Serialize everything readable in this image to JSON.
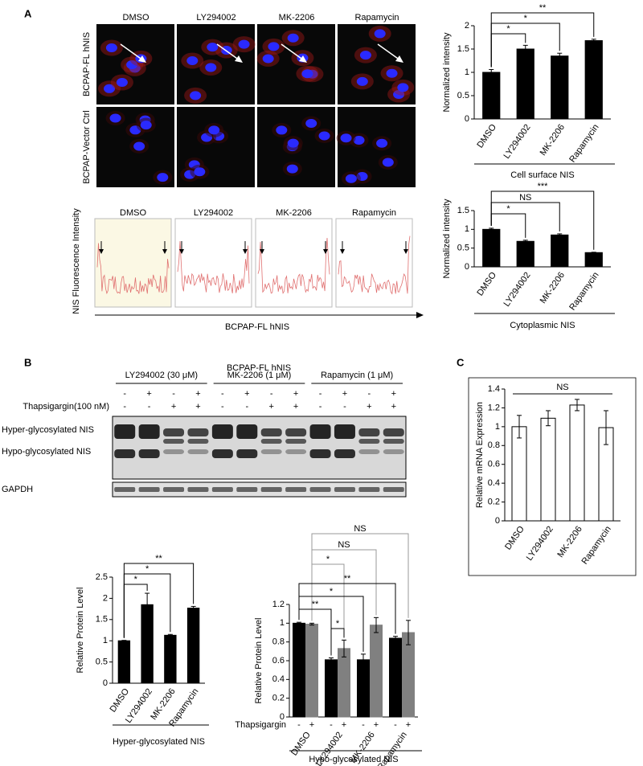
{
  "panel_labels": [
    "A",
    "B",
    "C"
  ],
  "micrographs": {
    "columns": [
      "DMSO",
      "LY294002",
      "MK-2206",
      "Rapamycin"
    ],
    "rows": [
      "BCPAP-FL hNIS",
      "BCPAP-Vector Ctrl"
    ]
  },
  "profiles": {
    "titles": [
      "DMSO",
      "LY294002",
      "MK-2206",
      "Rapamycin"
    ],
    "ylabel": "NIS Fluorescence Intensity",
    "xlabel": "BCPAP-FL hNIS"
  },
  "blot": {
    "title": "BCPAP-FL hNIS",
    "groups": [
      "LY294002 (30 μM)",
      "MK-2206 (1 μM)",
      "Rapamycin (1 μM)"
    ],
    "inhibitor_row": [
      "-",
      "+",
      "-",
      "+",
      "-",
      "+",
      "-",
      "+",
      "-",
      "+",
      "-",
      "+"
    ],
    "thapsigargin_label": "Thapsigargin(100 nM)",
    "thapsigargin_row": [
      "-",
      "-",
      "+",
      "+",
      "-",
      "-",
      "+",
      "+",
      "-",
      "-",
      "+",
      "+"
    ],
    "bands": [
      "Hyper-glycosylated NIS",
      "Hypo-glycosylated NIS",
      "GAPDH"
    ]
  },
  "chart_data": [
    {
      "type": "bar",
      "ylabel": "Normalized intensity",
      "xlabel": "Cell surface NIS",
      "categories": [
        "DMSO",
        "LY294002",
        "MK-2206",
        "Rapamycin"
      ],
      "values": [
        1,
        1.5,
        1.35,
        1.68
      ],
      "errors": [
        0.06,
        0.08,
        0.06,
        0.03
      ],
      "color": "#000000",
      "ylim": [
        0,
        2
      ],
      "yticks": [
        0,
        0.5,
        1,
        1.5,
        2
      ],
      "annotations": [
        "*",
        "*",
        "**"
      ]
    },
    {
      "type": "bar",
      "ylabel": "Normalized intensity",
      "xlabel": "Cytoplasmic NIS",
      "categories": [
        "DMSO",
        "LY294002",
        "MK-2206",
        "Rapamycin"
      ],
      "values": [
        1,
        0.68,
        0.85,
        0.38
      ],
      "errors": [
        0.03,
        0.03,
        0.03,
        0.01
      ],
      "color": "#000000",
      "ylim": [
        0,
        1.5
      ],
      "yticks": [
        0,
        0.5,
        1,
        1.5
      ],
      "annotations": [
        "*",
        "NS",
        "***"
      ]
    },
    {
      "type": "bar",
      "ylabel": "Relative mRNA Expression",
      "categories": [
        "DMSO",
        "LY294002",
        "MK-2206",
        "Rapamycin"
      ],
      "values": [
        1,
        1.09,
        1.23,
        0.99
      ],
      "errors": [
        0.12,
        0.08,
        0.06,
        0.18
      ],
      "color": "#ffffff",
      "edgecolor": "#000000",
      "ylim": [
        0,
        1.4
      ],
      "yticks": [
        0,
        0.2,
        0.4,
        0.6,
        0.8,
        1,
        1.2,
        1.4
      ],
      "annotations": [
        "NS"
      ]
    },
    {
      "type": "bar",
      "ylabel": "Relative Protein Level",
      "xlabel": "Hyper-glycosylated NIS",
      "categories": [
        "DMSO",
        "LY294002",
        "MK-2206",
        "Rapamycin"
      ],
      "values": [
        1,
        1.85,
        1.13,
        1.77
      ],
      "errors": [
        0.01,
        0.27,
        0.02,
        0.04
      ],
      "color": "#000000",
      "ylim": [
        0,
        2.5
      ],
      "yticks": [
        0,
        0.5,
        1,
        1.5,
        2,
        2.5
      ],
      "annotations": [
        "*",
        "*",
        "**"
      ]
    },
    {
      "type": "bar",
      "ylabel": "Relative Protein Level",
      "xlabel": "Hypo-glycosylated NIS",
      "row_label": "Thapsigargin",
      "categories": [
        "DMSO",
        "LY294002",
        "MK-2206",
        "Rapamycin"
      ],
      "series": [
        {
          "name": "-",
          "color": "#000000",
          "values": [
            1,
            0.61,
            0.61,
            0.84
          ],
          "errors": [
            0.01,
            0.02,
            0.06,
            0.02
          ]
        },
        {
          "name": "+",
          "color": "#808080",
          "values": [
            0.99,
            0.73,
            0.98,
            0.9
          ],
          "errors": [
            0.01,
            0.09,
            0.08,
            0.13
          ]
        }
      ],
      "ylim": [
        0,
        1.2
      ],
      "yticks": [
        0,
        0.2,
        0.4,
        0.6,
        0.8,
        1,
        1.2
      ],
      "annotations": [
        {
          "text": "NS",
          "color": "#999999"
        },
        {
          "text": "NS",
          "color": "#999999"
        },
        {
          "text": "*",
          "color": "#999999"
        },
        {
          "text": "**",
          "color": "#000000"
        },
        {
          "text": "*",
          "color": "#000000"
        },
        {
          "text": "**",
          "color": "#000000"
        },
        {
          "text": "*",
          "color": "#000000"
        }
      ]
    }
  ]
}
